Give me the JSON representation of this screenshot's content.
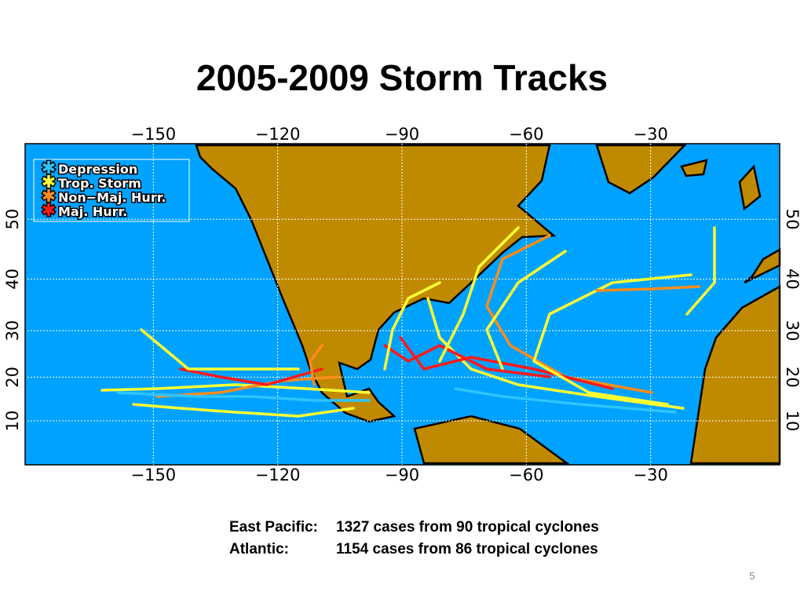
{
  "title": "2005-2009 Storm Tracks",
  "map": {
    "projection": "mercator",
    "xlim": [
      -180,
      0
    ],
    "ylim": [
      0,
      60
    ],
    "xticks": [
      {
        "value": -150,
        "label": "−150"
      },
      {
        "value": -120,
        "label": "−120"
      },
      {
        "value": -90,
        "label": "−90"
      },
      {
        "value": -60,
        "label": "−60"
      },
      {
        "value": -30,
        "label": "−30"
      }
    ],
    "yticks": [
      10,
      20,
      30,
      40,
      50
    ],
    "grid": true,
    "ocean_color": "#00a2ff",
    "land_color": "#c08a00",
    "legend": [
      {
        "name": "Depression",
        "color": "#2ec4ff"
      },
      {
        "name": "Trop. Storm",
        "color": "#ffff33"
      },
      {
        "name": "Non−Maj. Hurr.",
        "color": "#ff8c1a"
      },
      {
        "name": "Maj. Hurr.",
        "color": "#ff1a1a"
      }
    ]
  },
  "caption": [
    {
      "label": "East Pacific:",
      "text": "1327 cases from 90 tropical cyclones"
    },
    {
      "label": "Atlantic:",
      "text": "1154 cases from 86 tropical cyclones"
    }
  ],
  "page_number": "5"
}
